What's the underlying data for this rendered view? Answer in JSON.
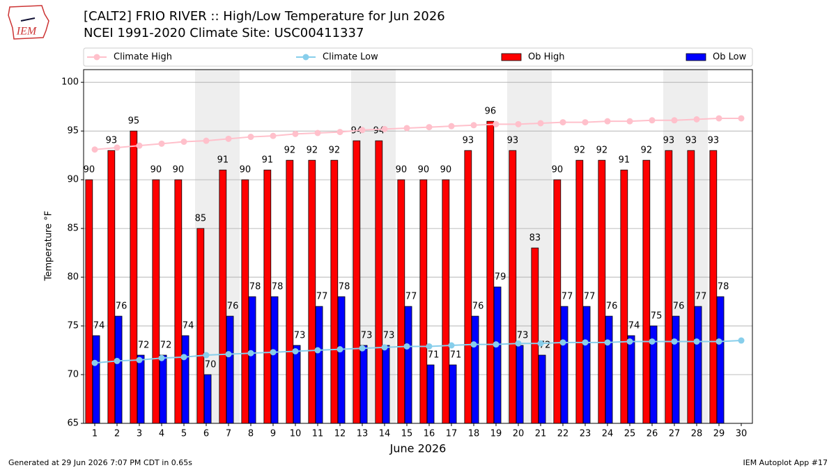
{
  "chart_data": {
    "type": "bar",
    "title": "[CALT2] FRIO RIVER :: High/Low Temperature for Jun 2026",
    "subtitle": "NCEI 1991-2020 Climate Site: USC00411337",
    "logo_text": "IEM",
    "x_label": "June 2026",
    "y_label": "Temperature °F",
    "footer_left": "Generated at 29 Jun 2026 7:07 PM CDT in 0.65s",
    "footer_right": "IEM Autoplot App #17",
    "x": [
      1,
      2,
      3,
      4,
      5,
      6,
      7,
      8,
      9,
      10,
      11,
      12,
      13,
      14,
      15,
      16,
      17,
      18,
      19,
      20,
      21,
      22,
      23,
      24,
      25,
      26,
      27,
      28,
      29,
      30
    ],
    "xlim": [
      0.5,
      30.5
    ],
    "ylim": [
      65,
      101.3
    ],
    "yticks": [
      65,
      70,
      75,
      80,
      85,
      90,
      95,
      100
    ],
    "grid": true,
    "shaded_x": [
      6,
      7,
      13,
      14,
      20,
      21,
      27,
      28
    ],
    "series": [
      {
        "name": "Climate High",
        "type": "line",
        "color": "#ffc0cb",
        "values": [
          93.1,
          93.3,
          93.5,
          93.7,
          93.9,
          94.0,
          94.2,
          94.4,
          94.5,
          94.7,
          94.8,
          94.9,
          95.1,
          95.2,
          95.3,
          95.4,
          95.5,
          95.6,
          95.7,
          95.7,
          95.8,
          95.9,
          95.9,
          96.0,
          96.0,
          96.1,
          96.1,
          96.2,
          96.3,
          96.3
        ]
      },
      {
        "name": "Climate Low",
        "type": "line",
        "color": "#87ceeb",
        "values": [
          71.2,
          71.4,
          71.5,
          71.7,
          71.8,
          72.0,
          72.1,
          72.2,
          72.3,
          72.4,
          72.5,
          72.6,
          72.7,
          72.8,
          72.9,
          72.9,
          73.0,
          73.1,
          73.1,
          73.2,
          73.2,
          73.3,
          73.3,
          73.3,
          73.4,
          73.4,
          73.4,
          73.4,
          73.4,
          73.5
        ]
      },
      {
        "name": "Ob High",
        "type": "bar",
        "color": "#ff0000",
        "values": [
          90,
          93,
          95,
          90,
          90,
          85,
          91,
          90,
          91,
          92,
          92,
          92,
          94,
          94,
          90,
          90,
          90,
          93,
          96,
          93,
          83,
          90,
          92,
          92,
          91,
          92,
          93,
          93,
          93,
          null
        ]
      },
      {
        "name": "Ob Low",
        "type": "bar",
        "color": "#0000ff",
        "values": [
          74,
          76,
          72,
          72,
          74,
          70,
          76,
          78,
          78,
          73,
          77,
          78,
          73,
          73,
          77,
          71,
          71,
          76,
          79,
          73,
          72,
          77,
          77,
          76,
          74,
          75,
          76,
          77,
          78,
          null
        ]
      }
    ]
  }
}
